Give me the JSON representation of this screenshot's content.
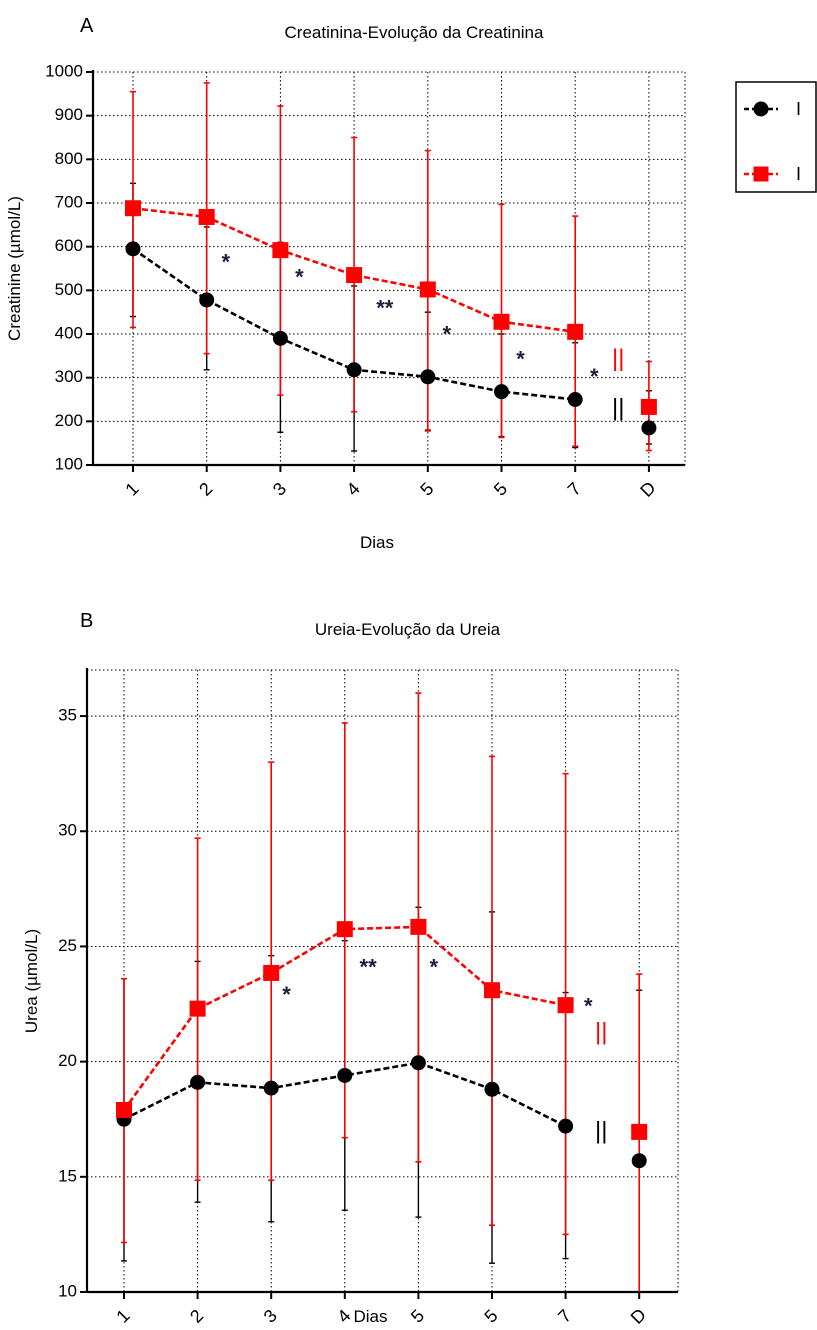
{
  "legend": {
    "items": [
      {
        "label": "I",
        "color": "#000000",
        "marker": "circle"
      },
      {
        "label": "I",
        "color": "#ff0000",
        "marker": "square"
      }
    ]
  },
  "chart_data": [
    {
      "panel_label": "A",
      "type": "line",
      "title": "Creatinina-Evolução da Creatinina",
      "xlabel": "Dias",
      "ylabel": "Creatinine (µmol/L)",
      "ylim": [
        100,
        1000
      ],
      "yticks": [
        100,
        200,
        300,
        400,
        500,
        600,
        700,
        800,
        900,
        1000
      ],
      "categories": [
        "1",
        "2",
        "3",
        "4",
        "5",
        "5",
        "7",
        "D"
      ],
      "grid": true,
      "series": [
        {
          "color": "#000000",
          "marker": "circle",
          "values": [
            595,
            478,
            390,
            318,
            302,
            268,
            250,
            185
          ],
          "err_low": [
            440,
            318,
            175,
            132,
            180,
            165,
            140,
            148
          ],
          "err_high": [
            745,
            645,
            610,
            510,
            450,
            400,
            380,
            270
          ]
        },
        {
          "color": "#ff0000",
          "marker": "square",
          "values": [
            688,
            668,
            592,
            535,
            502,
            428,
            405,
            233
          ],
          "err_low": [
            415,
            355,
            260,
            222,
            178,
            163,
            143,
            133
          ],
          "err_high": [
            955,
            975,
            922,
            850,
            820,
            697,
            670,
            337
          ]
        }
      ],
      "annotations": [
        {
          "text": "*",
          "x": 1.2,
          "y": 580,
          "color": "#1a1f3a"
        },
        {
          "text": "*",
          "x": 2.2,
          "y": 545,
          "color": "#1a1f3a"
        },
        {
          "text": "**",
          "x": 3.3,
          "y": 475,
          "color": "#1a1f3a"
        },
        {
          "text": "*",
          "x": 4.2,
          "y": 415,
          "color": "#1a1f3a"
        },
        {
          "text": "*",
          "x": 5.2,
          "y": 358,
          "color": "#1a1f3a"
        },
        {
          "text": "*",
          "x": 6.2,
          "y": 318,
          "color": "#1a1f3a"
        },
        {
          "text": "||",
          "x": 6.5,
          "y": 345,
          "color": "#ff0000"
        },
        {
          "text": "||",
          "x": 6.5,
          "y": 232,
          "color": "#000000"
        }
      ]
    },
    {
      "panel_label": "B",
      "type": "line",
      "title": "Ureia-Evolução da Ureia",
      "xlabel": "Dias",
      "ylabel": "Urea (µmol/L)",
      "ylim": [
        10,
        37
      ],
      "yticks": [
        10,
        15,
        20,
        25,
        30,
        35
      ],
      "categories": [
        "1",
        "2",
        "3",
        "4",
        "5",
        "5",
        "7",
        "D"
      ],
      "grid": true,
      "series": [
        {
          "color": "#000000",
          "marker": "circle",
          "values": [
            17.5,
            19.1,
            18.85,
            19.4,
            19.95,
            18.8,
            17.2,
            15.7
          ],
          "err_low": [
            11.35,
            13.9,
            13.05,
            13.55,
            13.25,
            11.25,
            11.45,
            10.0
          ],
          "err_high": [
            23.6,
            24.35,
            24.6,
            25.25,
            26.7,
            26.5,
            23.0,
            23.1
          ]
        },
        {
          "color": "#ff0000",
          "marker": "square",
          "values": [
            17.9,
            22.3,
            23.85,
            25.75,
            25.85,
            23.1,
            22.45,
            16.95
          ],
          "err_low": [
            12.15,
            14.85,
            14.85,
            16.7,
            15.65,
            12.9,
            12.5,
            10.0
          ],
          "err_high": [
            23.6,
            29.7,
            33.0,
            34.7,
            36.0,
            33.25,
            32.5,
            23.8
          ]
        }
      ],
      "annotations": [
        {
          "text": "*",
          "x": 2.15,
          "y": 23.2,
          "color": "#1a1f3a"
        },
        {
          "text": "**",
          "x": 3.2,
          "y": 24.4,
          "color": "#1a1f3a"
        },
        {
          "text": "*",
          "x": 4.15,
          "y": 24.4,
          "color": "#1a1f3a"
        },
        {
          "text": "*",
          "x": 6.25,
          "y": 22.7,
          "color": "#1a1f3a"
        },
        {
          "text": "||",
          "x": 6.4,
          "y": 21.3,
          "color": "#ff0000"
        },
        {
          "text": "||",
          "x": 6.4,
          "y": 17.0,
          "color": "#000000"
        }
      ]
    }
  ]
}
